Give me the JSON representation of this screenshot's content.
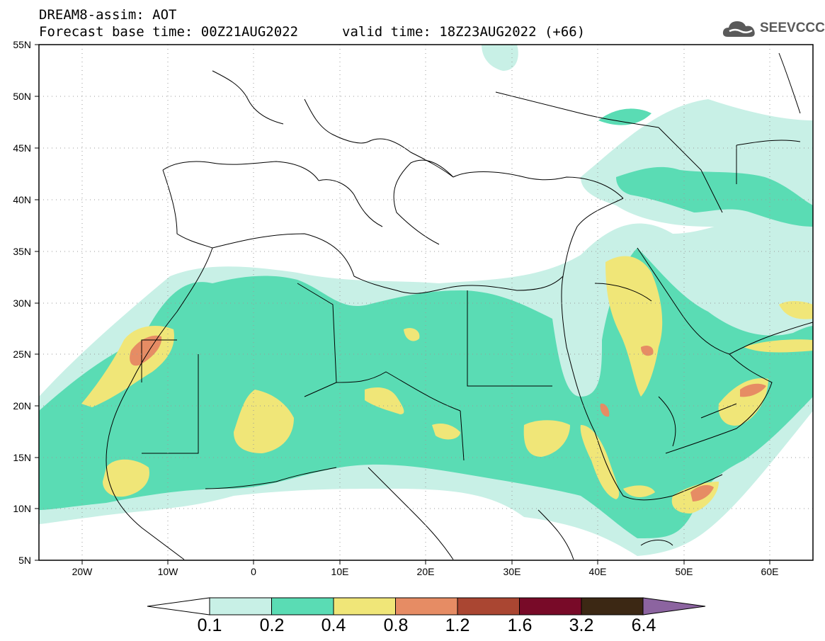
{
  "header": {
    "title": "DREAM8-assim: AOT",
    "base_time": "Forecast base time: 00Z21AUG2022",
    "valid_time": "valid time: 18Z23AUG2022 (+66)"
  },
  "logo": {
    "text": "SEEVCCC",
    "icon": "cloud-icon"
  },
  "map": {
    "variable": "AOT",
    "lon_range": [
      -25,
      65
    ],
    "lat_range": [
      5,
      55
    ],
    "lat_ticks": [
      "55N",
      "50N",
      "45N",
      "40N",
      "35N",
      "30N",
      "25N",
      "20N",
      "15N",
      "10N",
      "5N"
    ],
    "lon_ticks": [
      "20W",
      "10W",
      "0",
      "10E",
      "20E",
      "30E",
      "40E",
      "50E",
      "60E"
    ],
    "grid_lines": true,
    "border_color": "#000000"
  },
  "colorbar": {
    "labels": [
      "0.1",
      "0.2",
      "0.4",
      "0.8",
      "1.2",
      "1.6",
      "3.2",
      "6.4"
    ],
    "colors": [
      "#c8f0e6",
      "#5adcb4",
      "#f0e678",
      "#e68c64",
      "#aa4632",
      "#780a28",
      "#3c2814",
      "#8c64a0"
    ],
    "low_end_color": "#ffffff"
  }
}
